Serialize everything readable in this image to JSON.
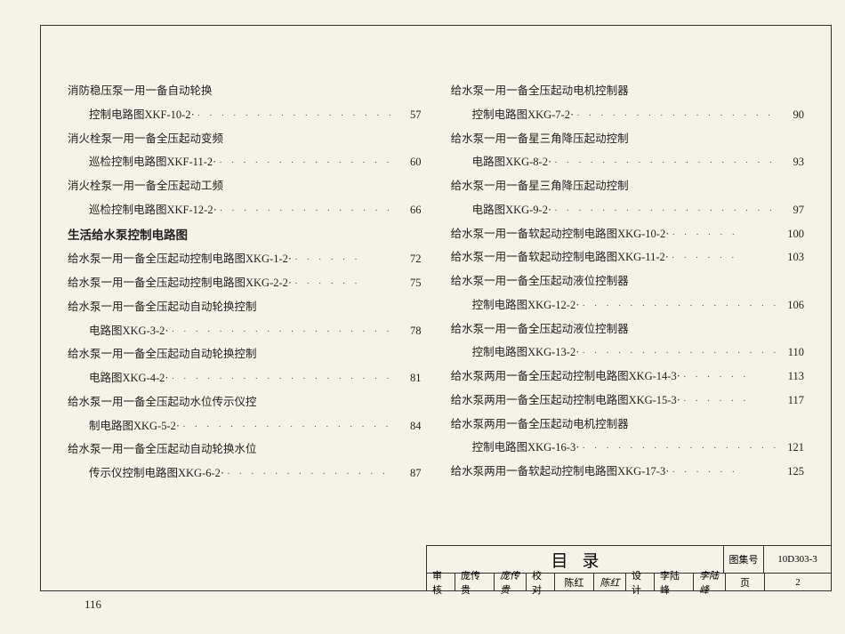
{
  "page_number_outer": "116",
  "section_title": "生活给水泵控制电路图",
  "left_column": [
    {
      "type": "heading",
      "text": "消防稳压泵一用一备自动轮换"
    },
    {
      "type": "entry",
      "text": "控制电路图XKF-10-2·",
      "page": "57",
      "indent": true
    },
    {
      "type": "heading",
      "text": "消火栓泵一用一备全压起动变频"
    },
    {
      "type": "entry",
      "text": "巡检控制电路图XKF-11-2·",
      "page": "60",
      "indent": true
    },
    {
      "type": "heading",
      "text": "消火栓泵一用一备全压起动工频"
    },
    {
      "type": "entry",
      "text": "巡检控制电路图XKF-12-2·",
      "page": "66",
      "indent": true
    },
    {
      "type": "section"
    },
    {
      "type": "entry",
      "text": "给水泵一用一备全压起动控制电路图XKG-1-2·",
      "page": "72",
      "short": true
    },
    {
      "type": "entry",
      "text": "给水泵一用一备全压起动控制电路图XKG-2-2·",
      "page": "75",
      "short": true
    },
    {
      "type": "heading",
      "text": "给水泵一用一备全压起动自动轮换控制"
    },
    {
      "type": "entry",
      "text": "电路图XKG-3-2·",
      "page": "78",
      "indent": true
    },
    {
      "type": "heading",
      "text": "给水泵一用一备全压起动自动轮换控制"
    },
    {
      "type": "entry",
      "text": "电路图XKG-4-2·",
      "page": "81",
      "indent": true
    },
    {
      "type": "heading",
      "text": "给水泵一用一备全压起动水位传示仪控"
    },
    {
      "type": "entry",
      "text": "制电路图XKG-5-2·",
      "page": "84",
      "indent": true
    },
    {
      "type": "heading",
      "text": "给水泵一用一备全压起动自动轮换水位"
    },
    {
      "type": "entry",
      "text": "传示仪控制电路图XKG-6-2·",
      "page": "87",
      "indent": true
    }
  ],
  "right_column": [
    {
      "type": "heading",
      "text": "给水泵一用一备全压起动电机控制器"
    },
    {
      "type": "entry",
      "text": "控制电路图XKG-7-2·",
      "page": "90",
      "indent": true
    },
    {
      "type": "heading",
      "text": "给水泵一用一备星三角降压起动控制"
    },
    {
      "type": "entry",
      "text": "电路图XKG-8-2·",
      "page": "93",
      "indent": true
    },
    {
      "type": "heading",
      "text": "给水泵一用一备星三角降压起动控制"
    },
    {
      "type": "entry",
      "text": "电路图XKG-9-2·",
      "page": "97",
      "indent": true
    },
    {
      "type": "entry",
      "text": "给水泵一用一备软起动控制电路图XKG-10-2·",
      "page": "100",
      "short": true
    },
    {
      "type": "entry",
      "text": "给水泵一用一备软起动控制电路图XKG-11-2·",
      "page": "103",
      "short": true
    },
    {
      "type": "heading",
      "text": "给水泵一用一备全压起动液位控制器"
    },
    {
      "type": "entry",
      "text": "控制电路图XKG-12-2·",
      "page": "106",
      "indent": true
    },
    {
      "type": "heading",
      "text": "给水泵一用一备全压起动液位控制器"
    },
    {
      "type": "entry",
      "text": "控制电路图XKG-13-2·",
      "page": "110",
      "indent": true
    },
    {
      "type": "entry",
      "text": "给水泵两用一备全压起动控制电路图XKG-14-3·",
      "page": "113",
      "short": true
    },
    {
      "type": "entry",
      "text": "给水泵两用一备全压起动控制电路图XKG-15-3·",
      "page": "117",
      "short": true
    },
    {
      "type": "heading",
      "text": "给水泵两用一备全压起动电机控制器"
    },
    {
      "type": "entry",
      "text": "控制电路图XKG-16-3·",
      "page": "121",
      "indent": true
    },
    {
      "type": "entry",
      "text": "给水泵两用一备软起动控制电路图XKG-17-3·",
      "page": "125",
      "short": true
    }
  ],
  "title_block": {
    "title": "目录",
    "series_label": "图集号",
    "series_val": "10D303-3",
    "row2": {
      "check_label": "审核",
      "check_name": "庞传贵",
      "check_sig": "庞传贵",
      "proof_label": "校对",
      "proof_name": "陈红",
      "proof_sig": "陈红",
      "design_label": "设计",
      "design_name": "李陆峰",
      "design_sig": "李陆峰",
      "page_label": "页",
      "page_val": "2"
    }
  }
}
